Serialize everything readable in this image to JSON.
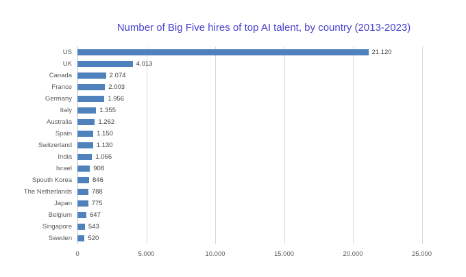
{
  "title": "Number of Big Five hires of top AI talent, by country (2013-2023)",
  "chart_data": {
    "type": "bar",
    "orientation": "horizontal",
    "title": "Number of Big Five hires of top AI talent, by country (2013-2023)",
    "categories": [
      "US",
      "UK",
      "Canada",
      "France",
      "Germany",
      "Italy",
      "Australia",
      "Spain",
      "Switzerland",
      "India",
      "Israel",
      "Spouth Korea",
      "The Netherlands",
      "Japan",
      "Belgium",
      "Singapore",
      "Sweden"
    ],
    "values": [
      21120,
      4013,
      2074,
      2003,
      1956,
      1355,
      1262,
      1150,
      1130,
      1066,
      908,
      846,
      788,
      775,
      647,
      543,
      520
    ],
    "value_labels": [
      "21.120",
      "4.013",
      "2.074",
      "2.003",
      "1.956",
      "1.355",
      "1.262",
      "1.150",
      "1.130",
      "1.066",
      "908",
      "846",
      "788",
      "775",
      "647",
      "543",
      "520"
    ],
    "xlabel": "",
    "ylabel": "",
    "xlim": [
      0,
      25000
    ],
    "x_ticks": [
      0,
      5000,
      10000,
      15000,
      20000,
      25000
    ],
    "x_tick_labels": [
      "0",
      "5.000",
      "10.000",
      "15.000",
      "20.000",
      "25.000"
    ],
    "grid": true,
    "legend": false,
    "colors": {
      "bar": "#4F81BD",
      "title": "#4643CE",
      "axis_text": "#595959",
      "value_text": "#404040",
      "gridline": "#D9D9D9"
    }
  }
}
